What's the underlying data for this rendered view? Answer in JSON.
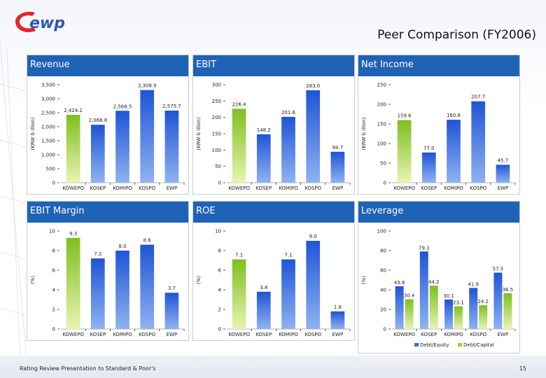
{
  "page": {
    "title": "Peer Comparison (FY2006)",
    "footer_left": "Rating Review Presentation to Standard & Poor's",
    "page_number": "15",
    "logo_text": "ewp"
  },
  "colors": {
    "header": "#1f63b6",
    "bar_green": "#9ccc3c",
    "bar_blue": "#2f6fdc"
  },
  "chart_data": [
    {
      "id": "revenue",
      "type": "bar",
      "title": "Revenue",
      "ylabel": "(KRW b illion)",
      "categories": [
        "KOWEPO",
        "KOSEP",
        "KOMIPO",
        "KOSPO",
        "EWP"
      ],
      "values": [
        2424.1,
        2068.8,
        2568.5,
        3308.9,
        2575.7
      ],
      "labels": [
        "2,424.1",
        "2,068.8",
        "2,568.5",
        "3,308.9",
        "2,575.7"
      ],
      "ylim": [
        0,
        3500
      ],
      "yticks": [
        0,
        500,
        1000,
        1500,
        2000,
        2500,
        3000,
        3500
      ],
      "yticklabels": [
        "0",
        "500",
        "1,000",
        "1,500",
        "2,000",
        "2,500",
        "3,000",
        "3,500"
      ],
      "highlight": [
        0
      ]
    },
    {
      "id": "ebit",
      "type": "bar",
      "title": "EBIT",
      "ylabel": "(KRW b illion)",
      "categories": [
        "KOWEPO",
        "KOSEP",
        "KOMIPO",
        "KOSPO",
        "EWP"
      ],
      "values": [
        226.4,
        148.2,
        201.6,
        283.0,
        94.7
      ],
      "labels": [
        "226.4",
        "148.2",
        "201.6",
        "283.0",
        "94.7"
      ],
      "ylim": [
        0,
        300
      ],
      "yticks": [
        0,
        50,
        100,
        150,
        200,
        250,
        300
      ],
      "yticklabels": [
        "0",
        "50",
        "100",
        "150",
        "200",
        "250",
        "300"
      ],
      "highlight": [
        0
      ]
    },
    {
      "id": "net_income",
      "type": "bar",
      "title": "Net Income",
      "ylabel": "(KRW b illion)",
      "categories": [
        "KOWEPO",
        "KOSEP",
        "KOMIPO",
        "KOSPO",
        "EWP"
      ],
      "values": [
        159.6,
        77.0,
        160.6,
        207.7,
        45.7
      ],
      "labels": [
        "159.6",
        "77.0",
        "160.6",
        "207.7",
        "45.7"
      ],
      "ylim": [
        0,
        250
      ],
      "yticks": [
        0,
        50,
        100,
        150,
        200,
        250
      ],
      "yticklabels": [
        "0",
        "50",
        "100",
        "150",
        "200",
        "250"
      ],
      "highlight": [
        0
      ]
    },
    {
      "id": "ebit_margin",
      "type": "bar",
      "title": "EBIT Margin",
      "ylabel": "(%)",
      "categories": [
        "KOWEPO",
        "KOSEP",
        "KOMIPO",
        "KOSPO",
        "EWP"
      ],
      "values": [
        9.3,
        7.2,
        8.0,
        8.6,
        3.7
      ],
      "labels": [
        "9.3",
        "7.2",
        "8.0",
        "8.6",
        "3.7"
      ],
      "ylim": [
        0,
        10
      ],
      "yticks": [
        0,
        2,
        4,
        6,
        8,
        10
      ],
      "yticklabels": [
        "0",
        "2",
        "4",
        "6",
        "8",
        "10"
      ],
      "highlight": [
        0
      ]
    },
    {
      "id": "roe",
      "type": "bar",
      "title": "ROE",
      "ylabel": "(%)",
      "categories": [
        "KOWEPO",
        "KOSEP",
        "KOMIPO",
        "KOSPO",
        "EWP"
      ],
      "values": [
        7.1,
        3.8,
        7.1,
        9.0,
        1.8
      ],
      "labels": [
        "7.1",
        "3.8",
        "7.1",
        "9.0",
        "1.8"
      ],
      "ylim": [
        0,
        10
      ],
      "yticks": [
        0,
        2,
        4,
        6,
        8,
        10
      ],
      "yticklabels": [
        "0",
        "2",
        "4",
        "6",
        "8",
        "10"
      ],
      "highlight": [
        0
      ]
    },
    {
      "id": "leverage",
      "type": "bar",
      "title": "Leverage",
      "ylabel": "(%)",
      "categories": [
        "KOWEPO",
        "KOSEP",
        "KOMIPO",
        "KOSPO",
        "EWP"
      ],
      "series": [
        {
          "name": "Debt/Equity",
          "values": [
            43.6,
            79.1,
            30.1,
            41.9,
            57.5
          ],
          "labels": [
            "43.6",
            "79.1",
            "30.1",
            "41.9",
            "57.5"
          ]
        },
        {
          "name": "Debt/Capital",
          "values": [
            30.4,
            44.2,
            23.1,
            24.2,
            36.5
          ],
          "labels": [
            "30.4",
            "44.2",
            "23.1",
            "24.2",
            "36.5"
          ]
        }
      ],
      "ylim": [
        0,
        100
      ],
      "yticks": [
        0,
        20,
        40,
        60,
        80,
        100
      ],
      "yticklabels": [
        "0",
        "20",
        "40",
        "60",
        "80",
        "100"
      ],
      "legend": "bottom"
    }
  ]
}
